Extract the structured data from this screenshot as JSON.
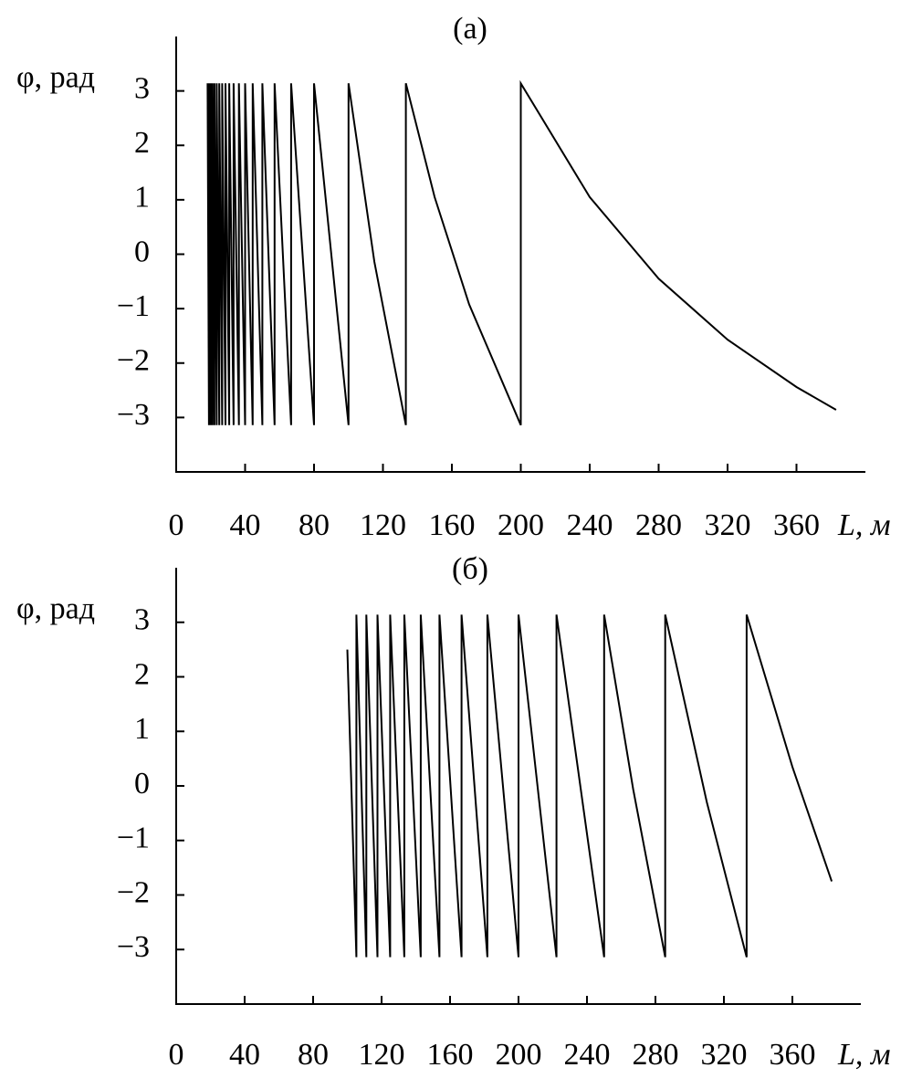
{
  "chart_data": [
    {
      "type": "line",
      "title": "(а)",
      "y_label": "φ, рад",
      "x_label": "L, м",
      "xlim": [
        0,
        400
      ],
      "ylim": [
        -4,
        4
      ],
      "xticks": [
        0,
        40,
        80,
        120,
        160,
        200,
        240,
        280,
        320,
        360
      ],
      "yticks": [
        {
          "value": -3,
          "label": "−3"
        },
        {
          "value": -2,
          "label": "−2"
        },
        {
          "value": -1,
          "label": "−1"
        },
        0,
        1,
        2,
        3
      ],
      "series": [
        {
          "color": "#000000",
          "x": [
            18.2,
            19.0,
            19.0,
            20.0,
            20.0,
            21.1,
            21.1,
            22.2,
            22.2,
            23.5,
            23.5,
            25.0,
            25.0,
            26.7,
            26.7,
            28.6,
            28.6,
            30.8,
            30.8,
            33.3,
            33.3,
            36.4,
            36.4,
            40.0,
            40.0,
            44.4,
            44.4,
            50.0,
            50.0,
            57.1,
            57.1,
            66.7,
            66.7,
            80.0,
            80.0,
            100.0,
            100.0,
            115.0,
            133.3,
            133.3,
            150.0,
            170.0,
            200.0,
            200.0,
            240.0,
            280.0,
            320.0,
            360.0,
            383.0
          ],
          "values": [
            3.14,
            -3.14,
            3.14,
            -3.14,
            3.14,
            -3.14,
            3.14,
            -3.14,
            3.14,
            -3.14,
            3.14,
            -3.14,
            3.14,
            -3.14,
            3.14,
            -3.14,
            3.14,
            -3.14,
            3.14,
            -3.14,
            3.14,
            -3.14,
            3.14,
            -3.14,
            3.14,
            -3.14,
            3.14,
            -3.14,
            3.14,
            -3.14,
            3.14,
            -3.14,
            3.14,
            -3.14,
            3.14,
            -3.14,
            3.14,
            -0.14,
            -3.14,
            3.14,
            1.05,
            -0.92,
            -3.14,
            3.14,
            1.05,
            -0.45,
            -1.57,
            -2.44,
            -2.86
          ]
        }
      ]
    },
    {
      "type": "line",
      "title": "(б)",
      "y_label": "φ, рад",
      "x_label": "L, м",
      "xlim": [
        0,
        400
      ],
      "ylim": [
        -4,
        4
      ],
      "xticks": [
        0,
        40,
        80,
        120,
        160,
        200,
        240,
        280,
        320,
        360
      ],
      "yticks": [
        {
          "value": -3,
          "label": "−3"
        },
        {
          "value": -2,
          "label": "−2"
        },
        {
          "value": -1,
          "label": "−1"
        },
        0,
        1,
        2,
        3
      ],
      "series": [
        {
          "color": "#000000",
          "x": [
            100.0,
            105.3,
            105.3,
            111.1,
            111.1,
            117.6,
            117.6,
            125.0,
            125.0,
            133.3,
            133.3,
            142.9,
            142.9,
            153.8,
            153.8,
            166.7,
            166.7,
            181.8,
            181.8,
            200.0,
            200.0,
            222.2,
            222.2,
            250.0,
            250.0,
            267.0,
            285.7,
            285.7,
            310.0,
            333.3,
            333.3,
            360.0,
            383.0
          ],
          "values": [
            2.5,
            -3.14,
            3.14,
            -3.14,
            3.14,
            -3.14,
            3.14,
            -3.14,
            3.14,
            -3.14,
            3.14,
            -3.14,
            3.14,
            -3.14,
            3.14,
            -3.14,
            3.14,
            -3.14,
            3.14,
            -3.14,
            3.14,
            -3.14,
            3.14,
            -3.14,
            3.14,
            -0.06,
            -3.14,
            3.14,
            -0.3,
            -3.14,
            3.14,
            0.35,
            -1.75
          ]
        }
      ]
    }
  ]
}
